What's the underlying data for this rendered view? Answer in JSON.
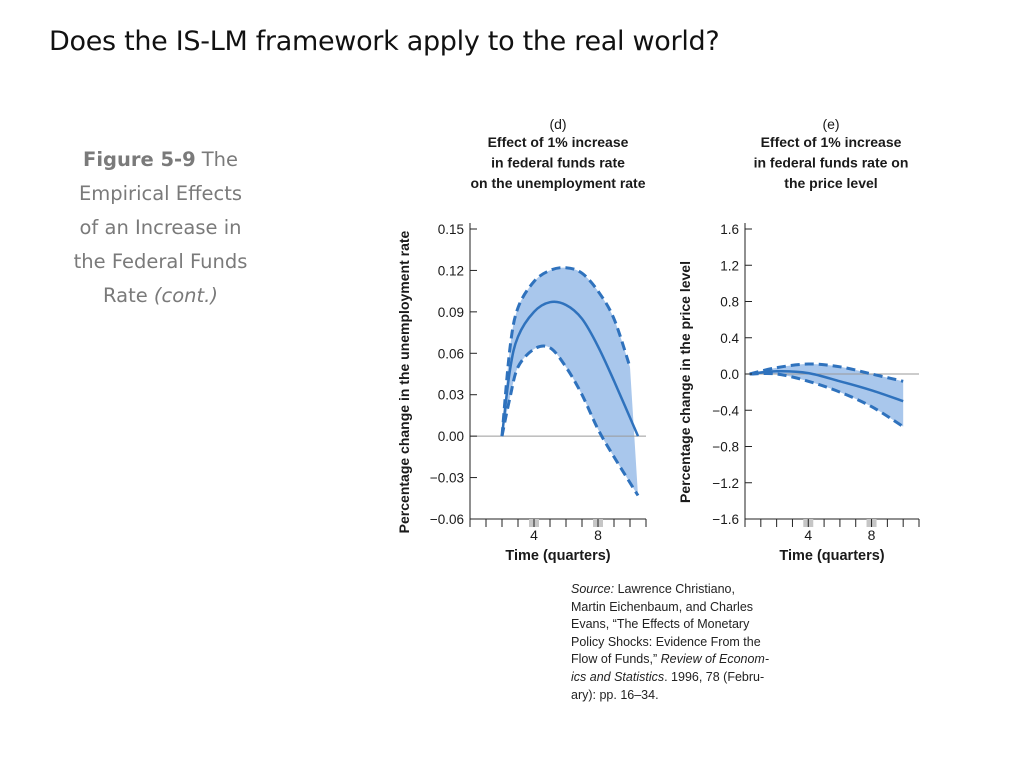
{
  "slide": {
    "title": "Does the IS-LM framework apply to the real world?"
  },
  "caption": {
    "figure_number": "Figure 5-9",
    "lines": [
      "The",
      "Empirical Effects",
      "of an Increase in",
      "the Federal Funds",
      "Rate"
    ],
    "cont": "(cont.)"
  },
  "source": {
    "label": "Source:",
    "lines": [
      " Lawrence Christiano,",
      "Martin Eichenbaum, and Charles",
      "Evans, “The Effects of Monetary",
      "Policy Shocks: Evidence From the",
      "Flow of Funds,” "
    ],
    "journal_lines": [
      "Review of Econom-",
      "ics and Statistics"
    ],
    "tail": ". 1996, 78 (Febru-",
    "last_line": "ary): pp. 16–34."
  },
  "colors": {
    "band": "#a9c7ec",
    "line": "#2f72bd",
    "axis": "#222222",
    "zero": "#9a9a9a",
    "tick_highlight": "#c6c6c6"
  },
  "chart_data": [
    {
      "type": "area",
      "panel": "(d)",
      "title": [
        "Effect of 1% increase",
        "in federal funds rate",
        "on the unemployment rate"
      ],
      "xlabel": "Time (quarters)",
      "ylabel": "Percentage change in the unemployment rate",
      "x_ticks": [
        4,
        8
      ],
      "x_range": [
        0,
        11
      ],
      "x_highlight": [
        4,
        8
      ],
      "ylim": [
        -0.06,
        0.15
      ],
      "y_ticks": [
        0.15,
        0.12,
        0.09,
        0.06,
        0.03,
        0.0,
        -0.03,
        -0.06
      ],
      "y_tick_labels": [
        "0.15",
        "0.12",
        "0.09",
        "0.06",
        "0.03",
        "0.00",
        "−0.03",
        "−0.06"
      ],
      "series": [
        {
          "role": "upper",
          "style": "dashed",
          "x": [
            2,
            2.5,
            3,
            4,
            5,
            6,
            7,
            8,
            9,
            10
          ],
          "y": [
            0.0,
            0.064,
            0.093,
            0.112,
            0.12,
            0.122,
            0.118,
            0.105,
            0.085,
            0.05
          ]
        },
        {
          "role": "estimate",
          "style": "solid",
          "x": [
            2,
            2.5,
            3,
            4,
            5,
            6,
            7,
            8,
            9,
            10.5
          ],
          "y": [
            0.0,
            0.048,
            0.072,
            0.09,
            0.097,
            0.095,
            0.085,
            0.065,
            0.04,
            0.0
          ]
        },
        {
          "role": "lower",
          "style": "dashed",
          "x": [
            2,
            2.5,
            3,
            4,
            5,
            6,
            7,
            8,
            9,
            10.5
          ],
          "y": [
            0.0,
            0.028,
            0.05,
            0.063,
            0.064,
            0.05,
            0.03,
            0.005,
            -0.015,
            -0.043
          ]
        }
      ],
      "grid": false
    },
    {
      "type": "area",
      "panel": "(e)",
      "title": [
        "Effect of 1% increase",
        "in federal funds rate on",
        "the price level"
      ],
      "xlabel": "Time (quarters)",
      "ylabel": "Percentage change in the price level",
      "x_ticks": [
        4,
        8
      ],
      "x_range": [
        0,
        11
      ],
      "x_highlight": [
        4,
        8
      ],
      "ylim": [
        -1.6,
        1.6
      ],
      "y_ticks": [
        1.6,
        1.2,
        0.8,
        0.4,
        0.0,
        -0.4,
        -0.8,
        -1.2,
        -1.6
      ],
      "y_tick_labels": [
        "1.6",
        "1.2",
        "0.8",
        "0.4",
        "0.0",
        "−0.4",
        "−0.8",
        "−1.2",
        "−1.6"
      ],
      "series": [
        {
          "role": "upper",
          "style": "dashed",
          "x": [
            0.3,
            2,
            4,
            6,
            8,
            10
          ],
          "y": [
            0.0,
            0.07,
            0.11,
            0.08,
            0.0,
            -0.08
          ]
        },
        {
          "role": "estimate",
          "style": "solid",
          "x": [
            0.3,
            2,
            4,
            6,
            8,
            10
          ],
          "y": [
            0.0,
            0.03,
            0.01,
            -0.08,
            -0.18,
            -0.3
          ]
        },
        {
          "role": "lower",
          "style": "dashed",
          "x": [
            0.3,
            2,
            4,
            6,
            8,
            10
          ],
          "y": [
            0.0,
            0.0,
            -0.08,
            -0.2,
            -0.36,
            -0.58
          ]
        }
      ],
      "grid": false
    }
  ]
}
